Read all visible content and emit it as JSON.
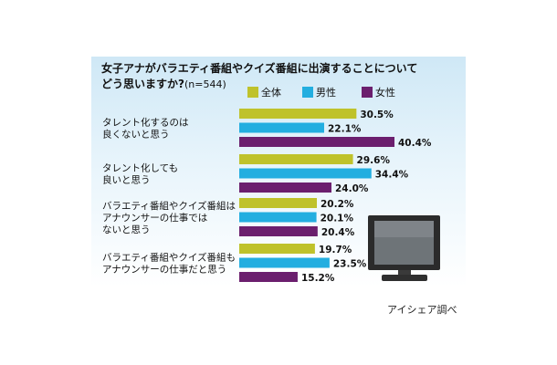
{
  "title_line1": "女子アナがバラエティ番組やクイズ番組に出演することについて",
  "title_line2": "どう思いますか?",
  "sample_note": "(n=544)",
  "source": "アイシェア調べ",
  "colors": {
    "全体": "#bfc22b",
    "男性": "#23aee0",
    "女性": "#6b1f6e"
  },
  "chart_data": {
    "type": "bar",
    "orientation": "horizontal",
    "categories": [
      [
        "タレント化するのは",
        "良くないと思う"
      ],
      [
        "タレント化しても",
        "良いと思う"
      ],
      [
        "バラエティ番組やクイズ番組は",
        "アナウンサーの仕事では",
        "ないと思う"
      ],
      [
        "バラエティ番組やクイズ番組も",
        "アナウンサーの仕事だと思う"
      ]
    ],
    "series": [
      {
        "name": "全体",
        "values": [
          30.5,
          29.6,
          20.2,
          19.7
        ],
        "labels": [
          "30.5%",
          "29.6%",
          "20.2%",
          "19.7%"
        ]
      },
      {
        "name": "男性",
        "values": [
          22.1,
          34.4,
          20.1,
          23.5
        ],
        "labels": [
          "22.1%",
          "34.4%",
          "20.1%",
          "23.5%"
        ]
      },
      {
        "name": "女性",
        "values": [
          40.4,
          24.0,
          20.4,
          15.2
        ],
        "labels": [
          "40.4%",
          "24.0%",
          "20.4%",
          "15.2%"
        ]
      }
    ],
    "xlim": [
      0,
      40.4
    ],
    "legend_position": "top",
    "grid": false
  }
}
